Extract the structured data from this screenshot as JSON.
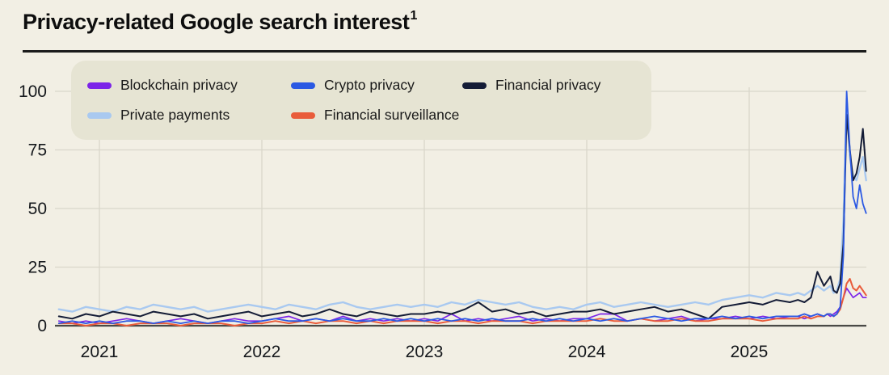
{
  "title": {
    "text": "Privacy-related Google search interest",
    "footnote_marker": "1"
  },
  "colors": {
    "page_background": "#f2efe4",
    "legend_background": "#e6e4d3",
    "gridline": "#d9d6ca",
    "axis_line": "#4a4a46",
    "title_text": "#0e0e0e",
    "tick_text": "#15181c"
  },
  "chart_data": {
    "type": "line",
    "title": "Privacy-related Google search interest",
    "xlabel": "",
    "ylabel": "",
    "ylim": [
      0,
      100
    ],
    "xlim": [
      2020.75,
      2025.72
    ],
    "grid": true,
    "legend_position": "top-left",
    "y_ticks": [
      {
        "value": 0,
        "label": "0"
      },
      {
        "value": 25,
        "label": "25"
      },
      {
        "value": 50,
        "label": "50"
      },
      {
        "value": 75,
        "label": "75"
      },
      {
        "value": 100,
        "label": "100"
      }
    ],
    "x_ticks": [
      {
        "value": 2021,
        "label": "2021"
      },
      {
        "value": 2022,
        "label": "2022"
      },
      {
        "value": 2023,
        "label": "2023"
      },
      {
        "value": 2024,
        "label": "2024"
      },
      {
        "value": 2025,
        "label": "2025"
      }
    ],
    "legend_rows": [
      [
        "blockchain",
        "crypto",
        "financial_privacy"
      ],
      [
        "private_payments",
        "surveillance"
      ]
    ],
    "draw_order": [
      "private_payments",
      "blockchain",
      "surveillance",
      "financial_privacy",
      "crypto"
    ],
    "x": [
      2020.75,
      2020.833,
      2020.917,
      2021.0,
      2021.083,
      2021.167,
      2021.25,
      2021.333,
      2021.417,
      2021.5,
      2021.583,
      2021.667,
      2021.75,
      2021.833,
      2021.917,
      2022.0,
      2022.083,
      2022.167,
      2022.25,
      2022.333,
      2022.417,
      2022.5,
      2022.583,
      2022.667,
      2022.75,
      2022.833,
      2022.917,
      2023.0,
      2023.083,
      2023.167,
      2023.25,
      2023.333,
      2023.417,
      2023.5,
      2023.583,
      2023.667,
      2023.75,
      2023.833,
      2023.917,
      2024.0,
      2024.083,
      2024.167,
      2024.25,
      2024.333,
      2024.417,
      2024.5,
      2024.583,
      2024.667,
      2024.75,
      2024.833,
      2024.917,
      2025.0,
      2025.083,
      2025.167,
      2025.25,
      2025.3,
      2025.34,
      2025.38,
      2025.42,
      2025.46,
      2025.48,
      2025.5,
      2025.52,
      2025.54,
      2025.56,
      2025.58,
      2025.6,
      2025.62,
      2025.64,
      2025.66,
      2025.68,
      2025.7,
      2025.72
    ],
    "series": [
      {
        "id": "blockchain",
        "label": "Blockchain privacy",
        "color": "#7c24e8",
        "values": [
          2,
          1,
          2,
          1,
          2,
          3,
          2,
          1,
          2,
          3,
          2,
          1,
          2,
          3,
          2,
          2,
          3,
          4,
          2,
          3,
          2,
          4,
          2,
          3,
          2,
          3,
          2,
          3,
          2,
          5,
          2,
          3,
          2,
          3,
          4,
          2,
          3,
          2,
          3,
          3,
          5,
          5,
          2,
          3,
          2,
          3,
          4,
          2,
          3,
          3,
          4,
          3,
          4,
          3,
          4,
          4,
          3,
          4,
          5,
          4,
          5,
          4,
          5,
          6,
          8,
          12,
          16,
          14,
          12,
          13,
          14,
          12,
          12
        ]
      },
      {
        "id": "crypto",
        "label": "Crypto privacy",
        "color": "#2b59e3",
        "values": [
          1,
          2,
          1,
          2,
          1,
          2,
          2,
          1,
          2,
          1,
          2,
          1,
          2,
          2,
          1,
          2,
          3,
          2,
          2,
          3,
          2,
          3,
          2,
          2,
          3,
          2,
          3,
          2,
          3,
          2,
          3,
          2,
          3,
          2,
          2,
          3,
          2,
          3,
          2,
          3,
          2,
          3,
          2,
          3,
          4,
          3,
          2,
          3,
          3,
          4,
          3,
          4,
          3,
          4,
          4,
          4,
          5,
          4,
          5,
          4,
          5,
          5,
          4,
          5,
          8,
          30,
          100,
          75,
          55,
          50,
          60,
          52,
          48
        ]
      },
      {
        "id": "financial_privacy",
        "label": "Financial privacy",
        "color": "#141c36",
        "values": [
          4,
          3,
          5,
          4,
          6,
          5,
          4,
          6,
          5,
          4,
          5,
          3,
          4,
          5,
          6,
          4,
          5,
          6,
          4,
          5,
          7,
          5,
          4,
          6,
          5,
          4,
          5,
          5,
          6,
          5,
          7,
          10,
          6,
          7,
          5,
          6,
          4,
          5,
          6,
          6,
          7,
          5,
          6,
          7,
          8,
          6,
          7,
          5,
          3,
          8,
          9,
          10,
          9,
          11,
          10,
          11,
          10,
          12,
          23,
          17,
          19,
          21,
          15,
          14,
          18,
          35,
          90,
          75,
          62,
          65,
          72,
          84,
          66
        ]
      },
      {
        "id": "private_payments",
        "label": "Private payments",
        "color": "#a9c9f0",
        "values": [
          7,
          6,
          8,
          7,
          6,
          8,
          7,
          9,
          8,
          7,
          8,
          6,
          7,
          8,
          9,
          8,
          7,
          9,
          8,
          7,
          9,
          10,
          8,
          7,
          8,
          9,
          8,
          9,
          8,
          10,
          9,
          11,
          10,
          9,
          10,
          8,
          7,
          8,
          7,
          9,
          10,
          8,
          9,
          10,
          9,
          8,
          9,
          10,
          9,
          11,
          12,
          13,
          12,
          14,
          13,
          14,
          13,
          15,
          17,
          15,
          16,
          17,
          14,
          15,
          20,
          45,
          97,
          72,
          64,
          62,
          67,
          72,
          62
        ]
      },
      {
        "id": "surveillance",
        "label": "Financial surveillance",
        "color": "#e95c3b",
        "values": [
          1,
          1,
          0,
          1,
          1,
          0,
          1,
          1,
          1,
          0,
          1,
          1,
          1,
          0,
          1,
          1,
          2,
          1,
          2,
          1,
          2,
          2,
          1,
          2,
          1,
          2,
          2,
          2,
          1,
          2,
          2,
          1,
          2,
          2,
          2,
          1,
          2,
          2,
          2,
          2,
          3,
          2,
          2,
          3,
          2,
          2,
          3,
          2,
          2,
          3,
          3,
          3,
          2,
          3,
          3,
          3,
          4,
          3,
          4,
          4,
          5,
          5,
          4,
          5,
          7,
          12,
          18,
          20,
          16,
          15,
          17,
          15,
          13
        ]
      }
    ]
  }
}
